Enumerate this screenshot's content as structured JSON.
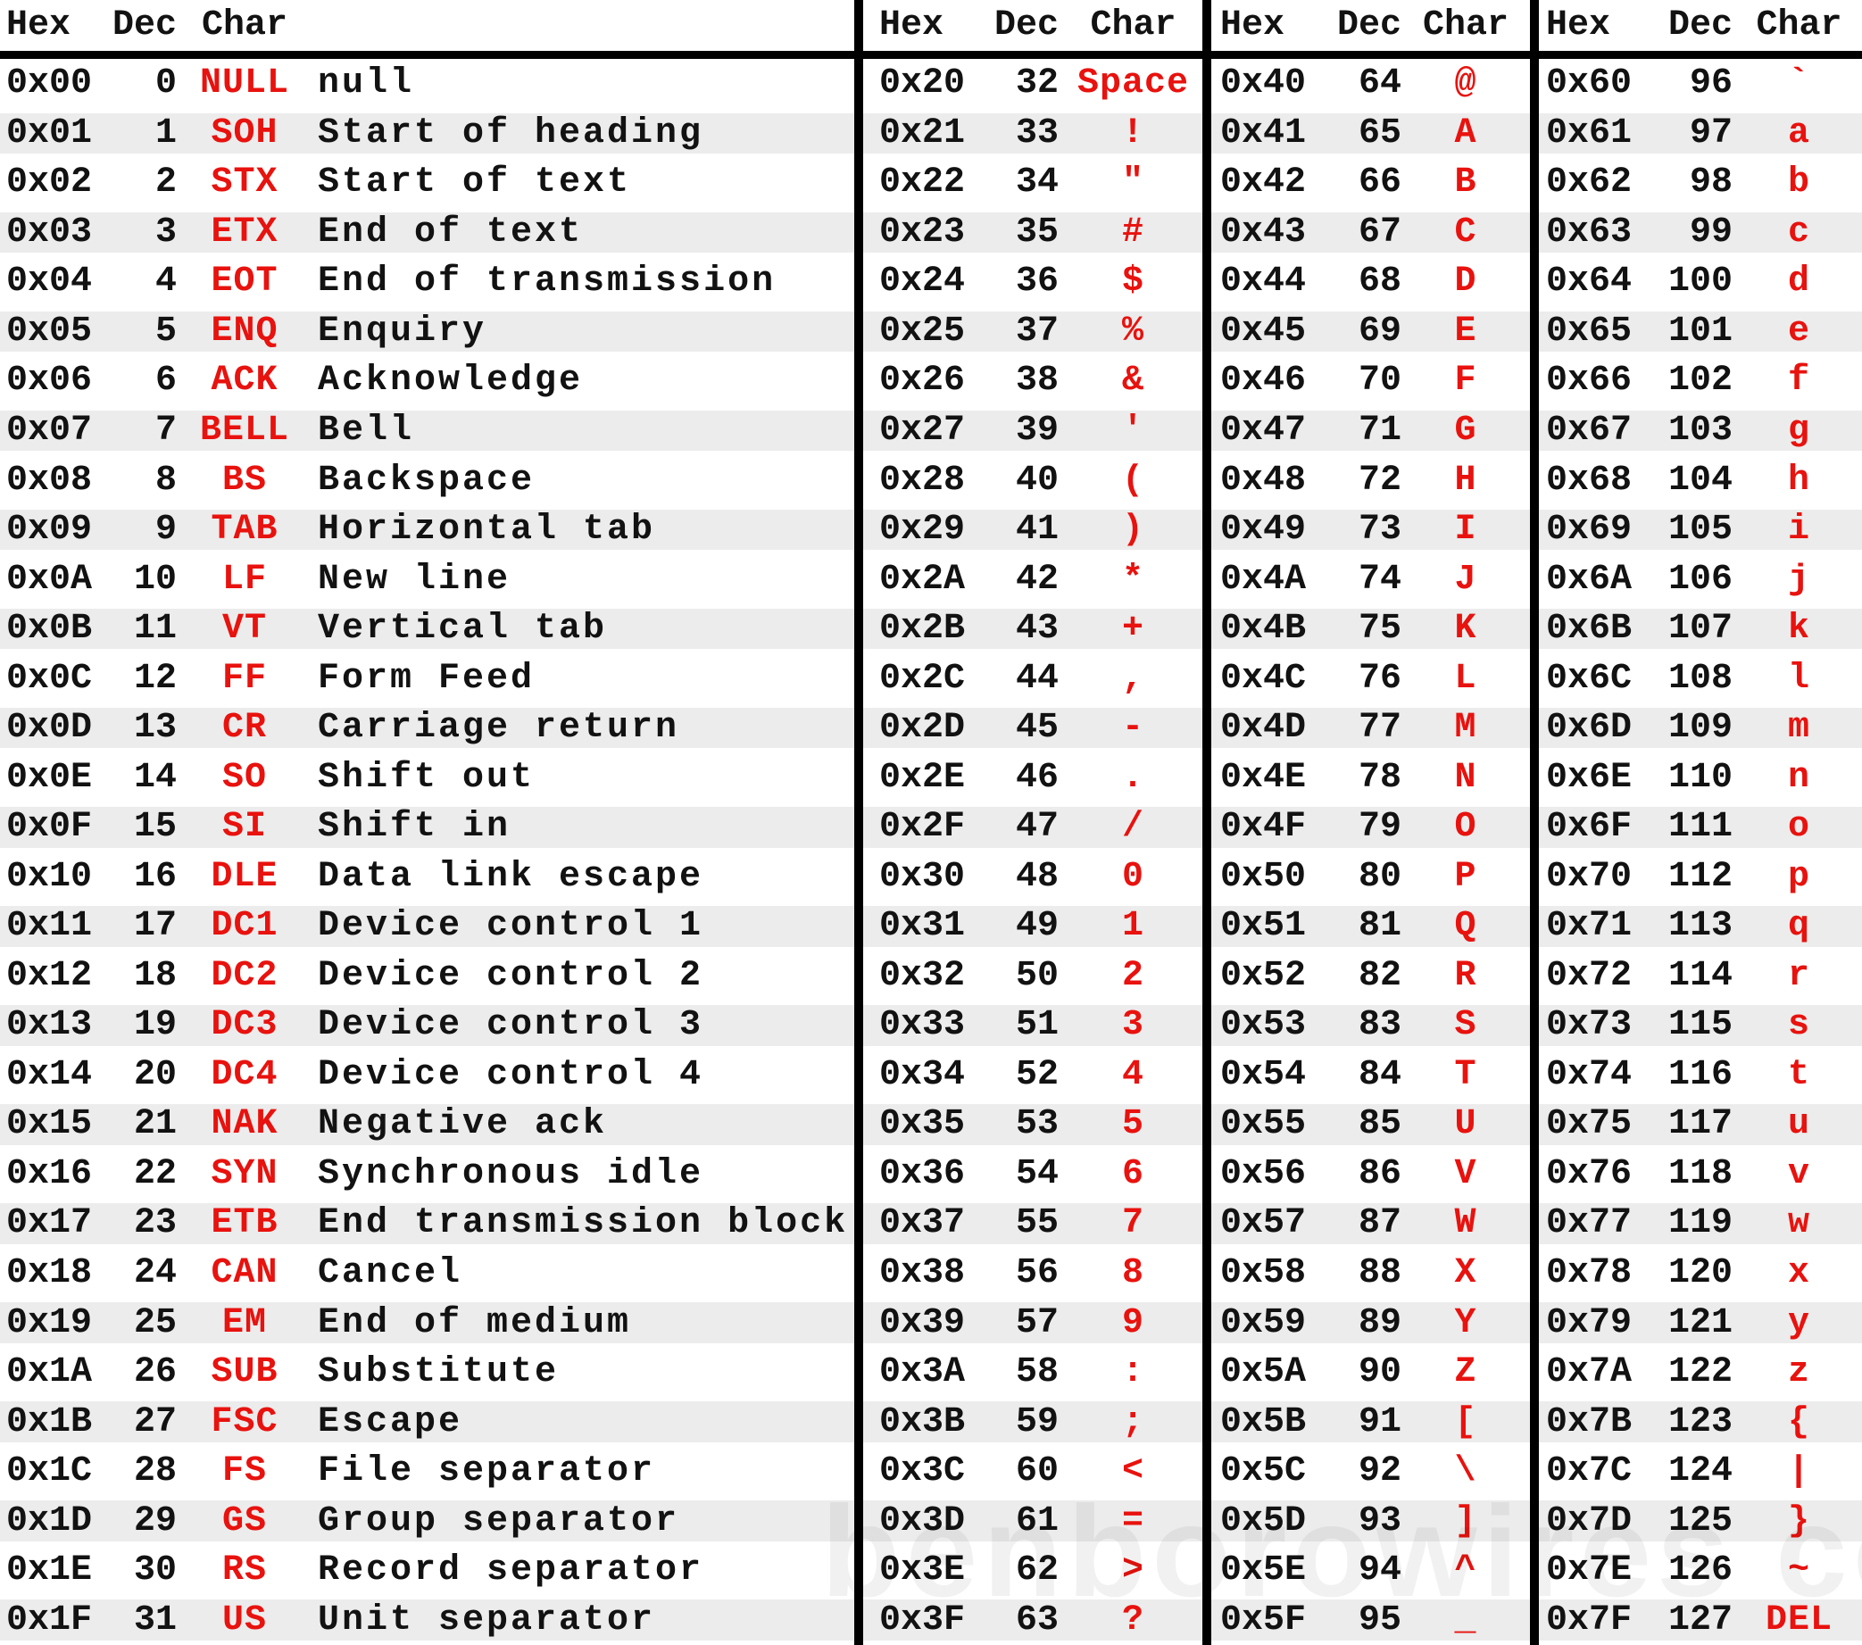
{
  "colors": {
    "text": "#121212",
    "red": "#e8120e",
    "stripe": "#ececec",
    "divider": "#000000"
  },
  "header": {
    "hex": "Hex",
    "dec": "Dec",
    "char": "Char"
  },
  "watermark": "benborowires com",
  "columns": [
    {
      "rows": [
        {
          "hex": "0x00",
          "dec": "0",
          "char": "NULL",
          "desc": "null"
        },
        {
          "hex": "0x01",
          "dec": "1",
          "char": "SOH",
          "desc": "Start of heading"
        },
        {
          "hex": "0x02",
          "dec": "2",
          "char": "STX",
          "desc": "Start of text"
        },
        {
          "hex": "0x03",
          "dec": "3",
          "char": "ETX",
          "desc": "End of text"
        },
        {
          "hex": "0x04",
          "dec": "4",
          "char": "EOT",
          "desc": "End of transmission"
        },
        {
          "hex": "0x05",
          "dec": "5",
          "char": "ENQ",
          "desc": "Enquiry"
        },
        {
          "hex": "0x06",
          "dec": "6",
          "char": "ACK",
          "desc": "Acknowledge"
        },
        {
          "hex": "0x07",
          "dec": "7",
          "char": "BELL",
          "desc": "Bell"
        },
        {
          "hex": "0x08",
          "dec": "8",
          "char": "BS",
          "desc": "Backspace"
        },
        {
          "hex": "0x09",
          "dec": "9",
          "char": "TAB",
          "desc": "Horizontal tab"
        },
        {
          "hex": "0x0A",
          "dec": "10",
          "char": "LF",
          "desc": "New line"
        },
        {
          "hex": "0x0B",
          "dec": "11",
          "char": "VT",
          "desc": "Vertical tab"
        },
        {
          "hex": "0x0C",
          "dec": "12",
          "char": "FF",
          "desc": "Form Feed"
        },
        {
          "hex": "0x0D",
          "dec": "13",
          "char": "CR",
          "desc": "Carriage return"
        },
        {
          "hex": "0x0E",
          "dec": "14",
          "char": "SO",
          "desc": "Shift out"
        },
        {
          "hex": "0x0F",
          "dec": "15",
          "char": "SI",
          "desc": "Shift in"
        },
        {
          "hex": "0x10",
          "dec": "16",
          "char": "DLE",
          "desc": "Data link escape"
        },
        {
          "hex": "0x11",
          "dec": "17",
          "char": "DC1",
          "desc": "Device control 1"
        },
        {
          "hex": "0x12",
          "dec": "18",
          "char": "DC2",
          "desc": "Device control 2"
        },
        {
          "hex": "0x13",
          "dec": "19",
          "char": "DC3",
          "desc": "Device control 3"
        },
        {
          "hex": "0x14",
          "dec": "20",
          "char": "DC4",
          "desc": "Device control 4"
        },
        {
          "hex": "0x15",
          "dec": "21",
          "char": "NAK",
          "desc": "Negative ack"
        },
        {
          "hex": "0x16",
          "dec": "22",
          "char": "SYN",
          "desc": "Synchronous idle"
        },
        {
          "hex": "0x17",
          "dec": "23",
          "char": "ETB",
          "desc": "End transmission block"
        },
        {
          "hex": "0x18",
          "dec": "24",
          "char": "CAN",
          "desc": "Cancel"
        },
        {
          "hex": "0x19",
          "dec": "25",
          "char": "EM",
          "desc": "End of medium"
        },
        {
          "hex": "0x1A",
          "dec": "26",
          "char": "SUB",
          "desc": "Substitute"
        },
        {
          "hex": "0x1B",
          "dec": "27",
          "char": "FSC",
          "desc": "Escape"
        },
        {
          "hex": "0x1C",
          "dec": "28",
          "char": "FS",
          "desc": "File separator"
        },
        {
          "hex": "0x1D",
          "dec": "29",
          "char": "GS",
          "desc": "Group separator"
        },
        {
          "hex": "0x1E",
          "dec": "30",
          "char": "RS",
          "desc": "Record separator"
        },
        {
          "hex": "0x1F",
          "dec": "31",
          "char": "US",
          "desc": "Unit separator"
        }
      ]
    },
    {
      "rows": [
        {
          "hex": "0x20",
          "dec": "32",
          "char": "Space"
        },
        {
          "hex": "0x21",
          "dec": "33",
          "char": "!"
        },
        {
          "hex": "0x22",
          "dec": "34",
          "char": "\""
        },
        {
          "hex": "0x23",
          "dec": "35",
          "char": "#"
        },
        {
          "hex": "0x24",
          "dec": "36",
          "char": "$"
        },
        {
          "hex": "0x25",
          "dec": "37",
          "char": "%"
        },
        {
          "hex": "0x26",
          "dec": "38",
          "char": "&"
        },
        {
          "hex": "0x27",
          "dec": "39",
          "char": "'"
        },
        {
          "hex": "0x28",
          "dec": "40",
          "char": "("
        },
        {
          "hex": "0x29",
          "dec": "41",
          "char": ")"
        },
        {
          "hex": "0x2A",
          "dec": "42",
          "char": "*"
        },
        {
          "hex": "0x2B",
          "dec": "43",
          "char": "+"
        },
        {
          "hex": "0x2C",
          "dec": "44",
          "char": ","
        },
        {
          "hex": "0x2D",
          "dec": "45",
          "char": "-"
        },
        {
          "hex": "0x2E",
          "dec": "46",
          "char": "."
        },
        {
          "hex": "0x2F",
          "dec": "47",
          "char": "/"
        },
        {
          "hex": "0x30",
          "dec": "48",
          "char": "0"
        },
        {
          "hex": "0x31",
          "dec": "49",
          "char": "1"
        },
        {
          "hex": "0x32",
          "dec": "50",
          "char": "2"
        },
        {
          "hex": "0x33",
          "dec": "51",
          "char": "3"
        },
        {
          "hex": "0x34",
          "dec": "52",
          "char": "4"
        },
        {
          "hex": "0x35",
          "dec": "53",
          "char": "5"
        },
        {
          "hex": "0x36",
          "dec": "54",
          "char": "6"
        },
        {
          "hex": "0x37",
          "dec": "55",
          "char": "7"
        },
        {
          "hex": "0x38",
          "dec": "56",
          "char": "8"
        },
        {
          "hex": "0x39",
          "dec": "57",
          "char": "9"
        },
        {
          "hex": "0x3A",
          "dec": "58",
          "char": ":"
        },
        {
          "hex": "0x3B",
          "dec": "59",
          "char": ";"
        },
        {
          "hex": "0x3C",
          "dec": "60",
          "char": "<"
        },
        {
          "hex": "0x3D",
          "dec": "61",
          "char": "="
        },
        {
          "hex": "0x3E",
          "dec": "62",
          "char": ">"
        },
        {
          "hex": "0x3F",
          "dec": "63",
          "char": "?"
        }
      ]
    },
    {
      "rows": [
        {
          "hex": "0x40",
          "dec": "64",
          "char": "@"
        },
        {
          "hex": "0x41",
          "dec": "65",
          "char": "A"
        },
        {
          "hex": "0x42",
          "dec": "66",
          "char": "B"
        },
        {
          "hex": "0x43",
          "dec": "67",
          "char": "C"
        },
        {
          "hex": "0x44",
          "dec": "68",
          "char": "D"
        },
        {
          "hex": "0x45",
          "dec": "69",
          "char": "E"
        },
        {
          "hex": "0x46",
          "dec": "70",
          "char": "F"
        },
        {
          "hex": "0x47",
          "dec": "71",
          "char": "G"
        },
        {
          "hex": "0x48",
          "dec": "72",
          "char": "H"
        },
        {
          "hex": "0x49",
          "dec": "73",
          "char": "I"
        },
        {
          "hex": "0x4A",
          "dec": "74",
          "char": "J"
        },
        {
          "hex": "0x4B",
          "dec": "75",
          "char": "K"
        },
        {
          "hex": "0x4C",
          "dec": "76",
          "char": "L"
        },
        {
          "hex": "0x4D",
          "dec": "77",
          "char": "M"
        },
        {
          "hex": "0x4E",
          "dec": "78",
          "char": "N"
        },
        {
          "hex": "0x4F",
          "dec": "79",
          "char": "O"
        },
        {
          "hex": "0x50",
          "dec": "80",
          "char": "P"
        },
        {
          "hex": "0x51",
          "dec": "81",
          "char": "Q"
        },
        {
          "hex": "0x52",
          "dec": "82",
          "char": "R"
        },
        {
          "hex": "0x53",
          "dec": "83",
          "char": "S"
        },
        {
          "hex": "0x54",
          "dec": "84",
          "char": "T"
        },
        {
          "hex": "0x55",
          "dec": "85",
          "char": "U"
        },
        {
          "hex": "0x56",
          "dec": "86",
          "char": "V"
        },
        {
          "hex": "0x57",
          "dec": "87",
          "char": "W"
        },
        {
          "hex": "0x58",
          "dec": "88",
          "char": "X"
        },
        {
          "hex": "0x59",
          "dec": "89",
          "char": "Y"
        },
        {
          "hex": "0x5A",
          "dec": "90",
          "char": "Z"
        },
        {
          "hex": "0x5B",
          "dec": "91",
          "char": "["
        },
        {
          "hex": "0x5C",
          "dec": "92",
          "char": "\\"
        },
        {
          "hex": "0x5D",
          "dec": "93",
          "char": "]"
        },
        {
          "hex": "0x5E",
          "dec": "94",
          "char": "^"
        },
        {
          "hex": "0x5F",
          "dec": "95",
          "char": "_"
        }
      ]
    },
    {
      "rows": [
        {
          "hex": "0x60",
          "dec": "96",
          "char": "`"
        },
        {
          "hex": "0x61",
          "dec": "97",
          "char": "a"
        },
        {
          "hex": "0x62",
          "dec": "98",
          "char": "b"
        },
        {
          "hex": "0x63",
          "dec": "99",
          "char": "c"
        },
        {
          "hex": "0x64",
          "dec": "100",
          "char": "d"
        },
        {
          "hex": "0x65",
          "dec": "101",
          "char": "e"
        },
        {
          "hex": "0x66",
          "dec": "102",
          "char": "f"
        },
        {
          "hex": "0x67",
          "dec": "103",
          "char": "g"
        },
        {
          "hex": "0x68",
          "dec": "104",
          "char": "h"
        },
        {
          "hex": "0x69",
          "dec": "105",
          "char": "i"
        },
        {
          "hex": "0x6A",
          "dec": "106",
          "char": "j"
        },
        {
          "hex": "0x6B",
          "dec": "107",
          "char": "k"
        },
        {
          "hex": "0x6C",
          "dec": "108",
          "char": "l"
        },
        {
          "hex": "0x6D",
          "dec": "109",
          "char": "m"
        },
        {
          "hex": "0x6E",
          "dec": "110",
          "char": "n"
        },
        {
          "hex": "0x6F",
          "dec": "111",
          "char": "o"
        },
        {
          "hex": "0x70",
          "dec": "112",
          "char": "p"
        },
        {
          "hex": "0x71",
          "dec": "113",
          "char": "q"
        },
        {
          "hex": "0x72",
          "dec": "114",
          "char": "r"
        },
        {
          "hex": "0x73",
          "dec": "115",
          "char": "s"
        },
        {
          "hex": "0x74",
          "dec": "116",
          "char": "t"
        },
        {
          "hex": "0x75",
          "dec": "117",
          "char": "u"
        },
        {
          "hex": "0x76",
          "dec": "118",
          "char": "v"
        },
        {
          "hex": "0x77",
          "dec": "119",
          "char": "w"
        },
        {
          "hex": "0x78",
          "dec": "120",
          "char": "x"
        },
        {
          "hex": "0x79",
          "dec": "121",
          "char": "y"
        },
        {
          "hex": "0x7A",
          "dec": "122",
          "char": "z"
        },
        {
          "hex": "0x7B",
          "dec": "123",
          "char": "{"
        },
        {
          "hex": "0x7C",
          "dec": "124",
          "char": "|"
        },
        {
          "hex": "0x7D",
          "dec": "125",
          "char": "}"
        },
        {
          "hex": "0x7E",
          "dec": "126",
          "char": "~"
        },
        {
          "hex": "0x7F",
          "dec": "127",
          "char": "DEL"
        }
      ]
    }
  ]
}
